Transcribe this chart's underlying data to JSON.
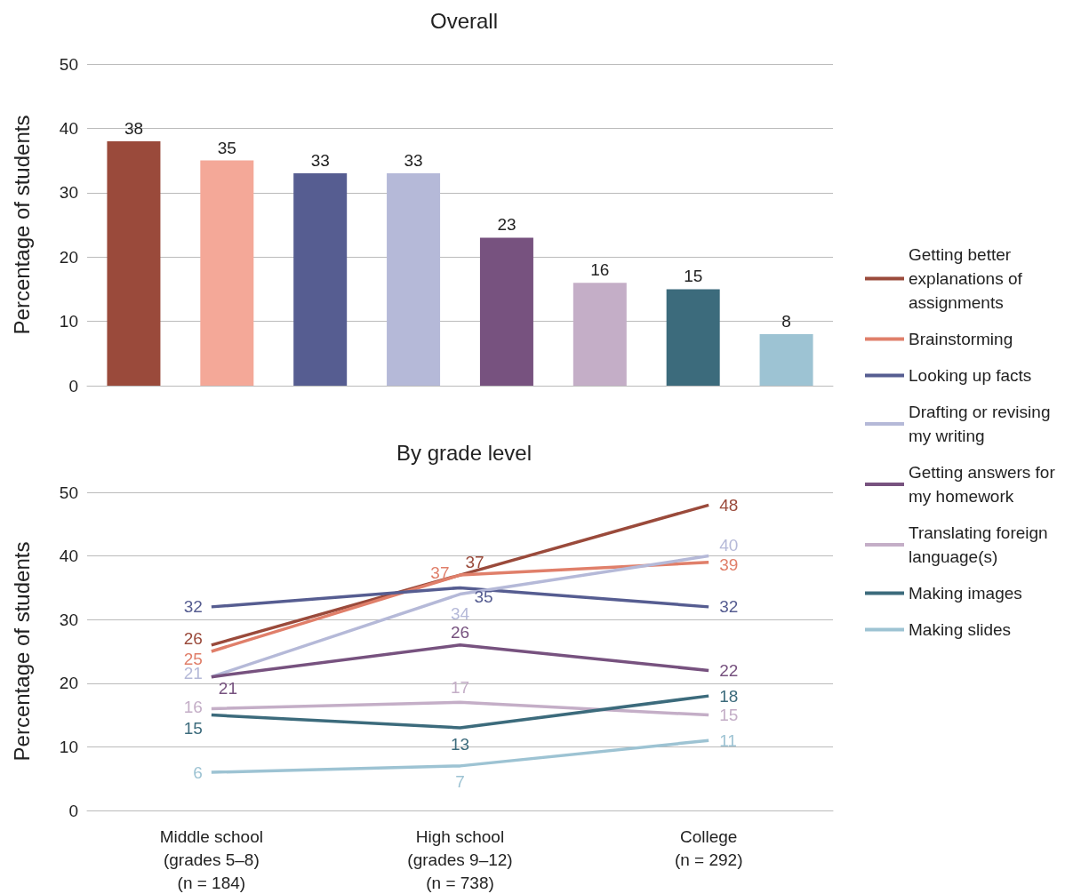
{
  "chart_data": [
    {
      "type": "bar",
      "title": "Overall",
      "ylabel": "Percentage of students",
      "categories": [
        null,
        null,
        null,
        null,
        null,
        null,
        null,
        null
      ],
      "values": [
        38,
        35,
        33,
        33,
        23,
        16,
        15,
        8
      ],
      "colors": [
        "#9a4a3b",
        "#f4a898",
        "#565d91",
        "#b5b9d8",
        "#77527f",
        "#c4aec7",
        "#3c6b7c",
        "#9dc3d3"
      ],
      "ylim": [
        0,
        50
      ],
      "yticks": [
        0,
        10,
        20,
        30,
        40,
        50
      ],
      "grid": "y",
      "data_labels": true,
      "tick_labels": "y"
    },
    {
      "type": "line",
      "title": "By grade level",
      "ylabel": "Percentage of students",
      "categories": [
        "Middle school\n(grades 5–8)\n(n = 184)",
        "High school\n(grades 9–12)\n(n = 738)",
        "College\n(n = 292)"
      ],
      "series": [
        {
          "name": "Getting better explanations of assignments",
          "color": "#9a4a3b",
          "values": [
            26,
            37,
            48
          ]
        },
        {
          "name": "Brainstorming",
          "color": "#e07f6a",
          "values": [
            25,
            37,
            39
          ]
        },
        {
          "name": "Looking up facts",
          "color": "#565d91",
          "values": [
            32,
            35,
            32
          ]
        },
        {
          "name": "Drafting or revising my writing",
          "color": "#b5b9d8",
          "values": [
            21,
            34,
            40
          ]
        },
        {
          "name": "Getting answers for my homework",
          "color": "#77527f",
          "values": [
            21,
            26,
            22
          ]
        },
        {
          "name": "Translating foreign language(s)",
          "color": "#c4aec7",
          "values": [
            16,
            17,
            15
          ]
        },
        {
          "name": "Making images",
          "color": "#3c6b7c",
          "values": [
            15,
            13,
            18
          ]
        },
        {
          "name": "Making slides",
          "color": "#9dc3d3",
          "values": [
            6,
            7,
            11
          ]
        }
      ],
      "ylim": [
        0,
        50
      ],
      "yticks": [
        0,
        10,
        20,
        30,
        40,
        50
      ],
      "grid": "y",
      "legend": "right",
      "data_labels": true,
      "marker": "none"
    }
  ]
}
